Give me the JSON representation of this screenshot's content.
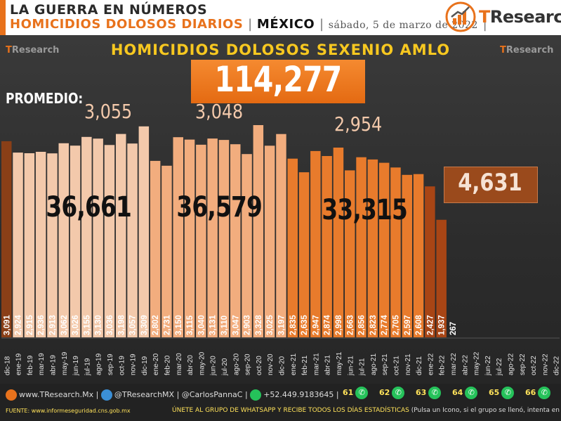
{
  "header": {
    "title": "LA GUERRA EN NÚMEROS",
    "subtitle": "HOMICIDIOS DOLOSOS DIARIOS",
    "country": "MÉXICO",
    "date": "sábado, 5 de marzo de 2022",
    "brand_t": "T",
    "brand_rest": "Research"
  },
  "chart_data": {
    "type": "bar",
    "title": "HOMICIDIOS DOLOSOS SEXENIO AMLO",
    "total": "114,277",
    "promedio_label": "PROMEDIO:",
    "averages": [
      "3,055",
      "3,048",
      "2,954"
    ],
    "year_totals": [
      "36,661",
      "36,579",
      "33,315",
      "4,631"
    ],
    "categories": [
      "dic-18",
      "ene-19",
      "feb-19",
      "mar-19",
      "abr-19",
      "may-19",
      "jun-19",
      "jul-19",
      "ago-19",
      "sep-19",
      "oct-19",
      "nov-19",
      "dic-19",
      "ene-20",
      "feb-20",
      "mar-20",
      "abr-20",
      "may-20",
      "jun-20",
      "jul-20",
      "ago-20",
      "sep-20",
      "oct-20",
      "nov-20",
      "dic-20",
      "ene-21",
      "feb-21",
      "mar-21",
      "abr-21",
      "may-21",
      "jun-21",
      "jul-21",
      "ago-21",
      "sep-21",
      "oct-21",
      "nov-21",
      "dic-21",
      "ene-22",
      "feb-22",
      "mar-22",
      "abr-22",
      "may-22",
      "jun-22",
      "jul-22",
      "ago-22",
      "sep-22",
      "oct-22",
      "nov-22",
      "dic-22"
    ],
    "values": [
      3091,
      2924,
      2915,
      2936,
      2913,
      3062,
      3026,
      3155,
      3130,
      3036,
      3198,
      3057,
      3309,
      2802,
      2731,
      3150,
      3115,
      3040,
      3131,
      3110,
      3047,
      2903,
      3328,
      3025,
      3197,
      2835,
      2635,
      2947,
      2874,
      2998,
      2663,
      2856,
      2823,
      2774,
      2705,
      2597,
      2608,
      2427,
      1937,
      267
    ],
    "labels": [
      "3,091",
      "2,924",
      "2,915",
      "2,936",
      "2,913",
      "3,062",
      "3,026",
      "3,155",
      "3,130",
      "3,036",
      "3,198",
      "3,057",
      "3,309",
      "2,802",
      "2,731",
      "3,150",
      "3,115",
      "3,040",
      "3,131",
      "3,110",
      "3,047",
      "2,903",
      "3,328",
      "3,025",
      "3,197",
      "2,835",
      "2,635",
      "2,947",
      "2,874",
      "2,998",
      "2,663",
      "2,856",
      "2,823",
      "2,774",
      "2,705",
      "2,597",
      "2,608",
      "2,427",
      "1,937",
      "267"
    ],
    "colors": {
      "dic-18": "#8a3f17",
      "y2019": "#f3c9ab",
      "y2020": "#f2ad7e",
      "y2021": "#e87b2c",
      "y2022": "#a84515",
      "current": "#d63a2a"
    },
    "ylim": [
      0,
      3400
    ]
  },
  "footer": {
    "web": "www.TResearch.Mx",
    "twitter": "@TResearchMX",
    "author": "@CarlosPannaC",
    "phone": "+52.449.9183645",
    "groups": [
      "61",
      "62",
      "63",
      "64",
      "65",
      "66"
    ],
    "source_label": "FUENTE:",
    "source_url": "www.informeseguridad.cns.gob.mx",
    "whatsapp_msg": "ÚNETE AL GRUPO DE WHATSAPP Y RECIBE TODOS LOS DÍAS ESTADÍSTICAS",
    "whatsapp_note": "(Pulsa un Icono, si el grupo se llenó, intenta en otro)"
  }
}
